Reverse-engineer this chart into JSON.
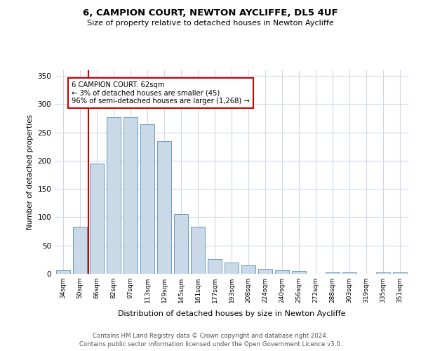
{
  "title1": "6, CAMPION COURT, NEWTON AYCLIFFE, DL5 4UF",
  "title2": "Size of property relative to detached houses in Newton Aycliffe",
  "xlabel": "Distribution of detached houses by size in Newton Aycliffe",
  "ylabel": "Number of detached properties",
  "categories": [
    "34sqm",
    "50sqm",
    "66sqm",
    "82sqm",
    "97sqm",
    "113sqm",
    "129sqm",
    "145sqm",
    "161sqm",
    "177sqm",
    "193sqm",
    "208sqm",
    "224sqm",
    "240sqm",
    "256sqm",
    "272sqm",
    "288sqm",
    "303sqm",
    "319sqm",
    "335sqm",
    "351sqm"
  ],
  "values": [
    6,
    83,
    195,
    277,
    277,
    265,
    235,
    105,
    83,
    26,
    20,
    15,
    9,
    6,
    5,
    0,
    3,
    3,
    0,
    3,
    3
  ],
  "bar_color": "#c9d9e8",
  "bar_edge_color": "#6a9bbf",
  "annotation_lines": [
    "6 CAMPION COURT: 62sqm",
    "← 3% of detached houses are smaller (45)",
    "96% of semi-detached houses are larger (1,268) →"
  ],
  "annotation_box_color": "#ffffff",
  "annotation_box_edge_color": "#cc0000",
  "ylim": [
    0,
    360
  ],
  "yticks": [
    0,
    50,
    100,
    150,
    200,
    250,
    300,
    350
  ],
  "footer1": "Contains HM Land Registry data © Crown copyright and database right 2024.",
  "footer2": "Contains public sector information licensed under the Open Government Licence v3.0.",
  "bg_color": "#ffffff",
  "grid_color": "#d0d8e8"
}
